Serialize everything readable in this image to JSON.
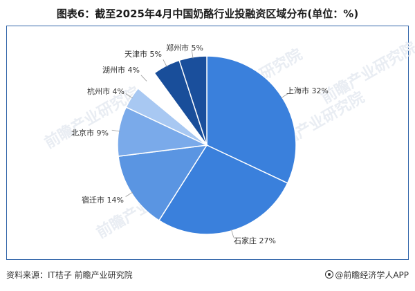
{
  "title": "图表6：截至2025年4月中国奶酪行业投融资区域分布(单位：%)",
  "footer": {
    "source": "资料来源：IT桔子 前瞻产业研究院",
    "brand": "@前瞻经济学人APP"
  },
  "watermark": "前瞻产业研究院",
  "chart_data": {
    "type": "pie",
    "title": "图表6：截至2025年4月中国奶酪行业投融资区域分布(单位：%)",
    "unit": "%",
    "slices": [
      {
        "label": "上海市",
        "value": 32,
        "color": "#3a80dc"
      },
      {
        "label": "石家庄",
        "value": 27,
        "color": "#3a80dc"
      },
      {
        "label": "宿迁市",
        "value": 14,
        "color": "#5a95e2"
      },
      {
        "label": "北京市",
        "value": 9,
        "color": "#7aaaea"
      },
      {
        "label": "杭州市",
        "value": 4,
        "color": "#a8c8f2"
      },
      {
        "label": "湖州市",
        "value": 4,
        "color": "#ffffff"
      },
      {
        "label": "天津市",
        "value": 5,
        "color": "#194e9a"
      },
      {
        "label": "郑州市",
        "value": 5,
        "color": "#1a4f9c"
      }
    ]
  }
}
